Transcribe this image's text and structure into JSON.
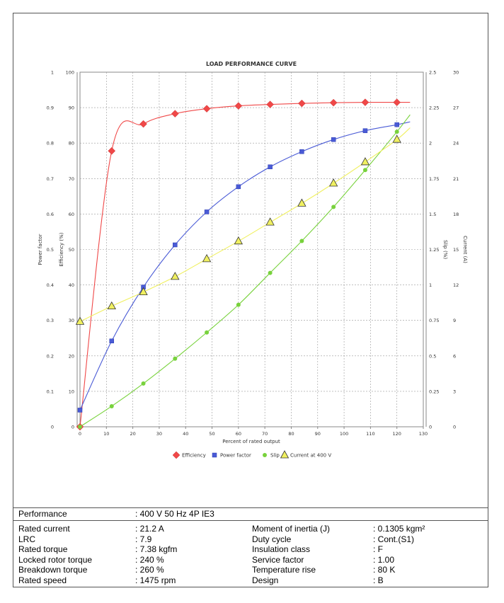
{
  "chart_data": {
    "type": "line",
    "title": "LOAD PERFORMANCE CURVE",
    "xlabel": "Percent of rated output",
    "x_ticks": [
      0,
      10,
      20,
      30,
      40,
      50,
      60,
      70,
      80,
      90,
      100,
      110,
      120,
      130
    ],
    "xlim": [
      0,
      130
    ],
    "axes": [
      {
        "name": "Power factor",
        "label": "Power factor",
        "range": [
          0,
          1
        ],
        "ticks": [
          "0",
          "0.1",
          "0.2",
          "0.3",
          "0.4",
          "0.5",
          "0.6",
          "0.7",
          "0.8",
          "0.9",
          "1"
        ]
      },
      {
        "name": "Efficiency",
        "label": "Efficiency (%)",
        "range": [
          0,
          100
        ],
        "ticks": [
          "0",
          "10",
          "20",
          "30",
          "40",
          "50",
          "60",
          "70",
          "80",
          "90",
          "100"
        ]
      },
      {
        "name": "Slip",
        "label": "Slip (%)",
        "range": [
          0,
          2.5
        ],
        "ticks": [
          "0",
          "0.25",
          "0.5",
          "0.75",
          "1",
          "1.25",
          "1.5",
          "1.75",
          "2",
          "2.25",
          "2.5"
        ]
      },
      {
        "name": "Current",
        "label": "Current (A)",
        "range": [
          0,
          30
        ],
        "ticks": [
          "0",
          "3",
          "6",
          "9",
          "12",
          "15",
          "18",
          "21",
          "24",
          "27",
          "30"
        ]
      }
    ],
    "grid": true,
    "legend_position": "bottom",
    "series": [
      {
        "name": "Efficiency",
        "axis": "Efficiency",
        "color": "#f04848",
        "marker": "diamond",
        "x": [
          0,
          12,
          24,
          36,
          48,
          60,
          72,
          84,
          96,
          108,
          120
        ],
        "y": [
          0,
          77.8,
          85.4,
          88.3,
          89.7,
          90.5,
          90.9,
          91.2,
          91.4,
          91.5,
          91.5
        ],
        "curve_end": [
          125,
          91.5
        ]
      },
      {
        "name": "Power factor",
        "axis": "Power factor",
        "color": "#4a5bd6",
        "marker": "square",
        "x": [
          0,
          12,
          24,
          36,
          48,
          60,
          72,
          84,
          96,
          108,
          120
        ],
        "y": [
          0.047,
          0.242,
          0.394,
          0.513,
          0.606,
          0.677,
          0.733,
          0.776,
          0.81,
          0.835,
          0.852
        ],
        "curve_end": [
          125,
          0.86
        ]
      },
      {
        "name": "Slip",
        "axis": "Slip",
        "color": "#78d23c",
        "marker": "circle",
        "x": [
          0,
          12,
          24,
          36,
          48,
          60,
          72,
          84,
          96,
          108,
          120
        ],
        "y": [
          0,
          0.145,
          0.305,
          0.48,
          0.665,
          0.86,
          1.085,
          1.31,
          1.55,
          1.81,
          2.08
        ],
        "curve_end": [
          125,
          2.2
        ]
      },
      {
        "name": "Current at 400 V",
        "axis": "Current",
        "color": "#f0f060",
        "marker": "triangle",
        "x": [
          0,
          12,
          24,
          36,
          48,
          60,
          72,
          84,
          96,
          108,
          120
        ],
        "y": [
          8.9,
          10.2,
          11.4,
          12.7,
          14.2,
          15.7,
          17.3,
          18.9,
          20.6,
          22.4,
          24.3
        ],
        "curve_end": [
          125,
          25.3
        ]
      }
    ]
  },
  "legend": [
    "Efficiency",
    "Power factor",
    "Slip",
    "Current at 400 V"
  ],
  "info": {
    "performance_label": "Performance",
    "performance_value": ": 400 V 50 Hz 4P IE3",
    "left": [
      {
        "label": "Rated current",
        "value": ": 21.2 A"
      },
      {
        "label": "LRC",
        "value": ": 7.9"
      },
      {
        "label": "Rated torque",
        "value": ": 7.38 kgfm"
      },
      {
        "label": "Locked rotor torque",
        "value": ": 240 %"
      },
      {
        "label": "Breakdown torque",
        "value": ": 260 %"
      },
      {
        "label": "Rated speed",
        "value": ": 1475 rpm"
      }
    ],
    "right": [
      {
        "label": "Moment of inertia (J)",
        "value": ": 0.1305 kgm²"
      },
      {
        "label": "Duty cycle",
        "value": ": Cont.(S1)"
      },
      {
        "label": "Insulation class",
        "value": ": F"
      },
      {
        "label": "Service factor",
        "value": ": 1.00"
      },
      {
        "label": "Temperature rise",
        "value": ": 80 K"
      },
      {
        "label": "Design",
        "value": ": B"
      }
    ]
  }
}
